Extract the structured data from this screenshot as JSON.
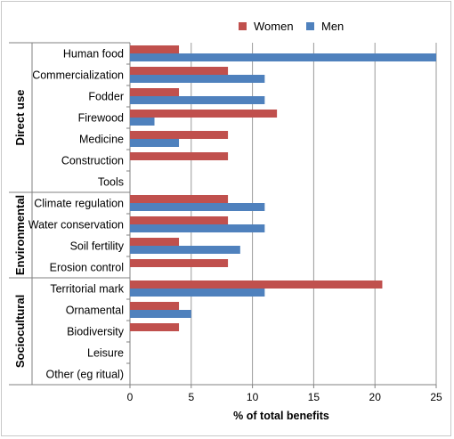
{
  "chart_data": {
    "type": "bar",
    "orientation": "horizontal",
    "xlabel": "% of total benefits",
    "xlim": [
      0,
      25
    ],
    "xticks": [
      0,
      5,
      10,
      15,
      20,
      25
    ],
    "grid": "vertical",
    "legend_position": "top",
    "categories": [
      "Human food",
      "Commercialization",
      "Fodder",
      "Firewood",
      "Medicine",
      "Construction",
      "Tools",
      "Climate regulation",
      "Water conservation",
      "Soil fertility",
      "Erosion control",
      "Territorial mark",
      "Ornamental",
      "Biodiversity",
      "Leisure",
      "Other (eg ritual)"
    ],
    "groups": [
      {
        "label": "Direct use",
        "start": 0,
        "end": 6
      },
      {
        "label": "Environmental",
        "start": 7,
        "end": 10
      },
      {
        "label": "Sociocultural",
        "start": 11,
        "end": 15
      }
    ],
    "series": [
      {
        "name": "Women",
        "color": "#c0504d",
        "values": [
          4,
          8,
          4,
          12,
          8,
          8,
          0,
          8,
          8,
          4,
          8,
          20.6,
          4,
          4,
          0,
          0
        ]
      },
      {
        "name": "Men",
        "color": "#4f81bd",
        "values": [
          25,
          11,
          11,
          2,
          4,
          0,
          0,
          11,
          11,
          9,
          0,
          11,
          5,
          0,
          0,
          0
        ]
      }
    ]
  }
}
